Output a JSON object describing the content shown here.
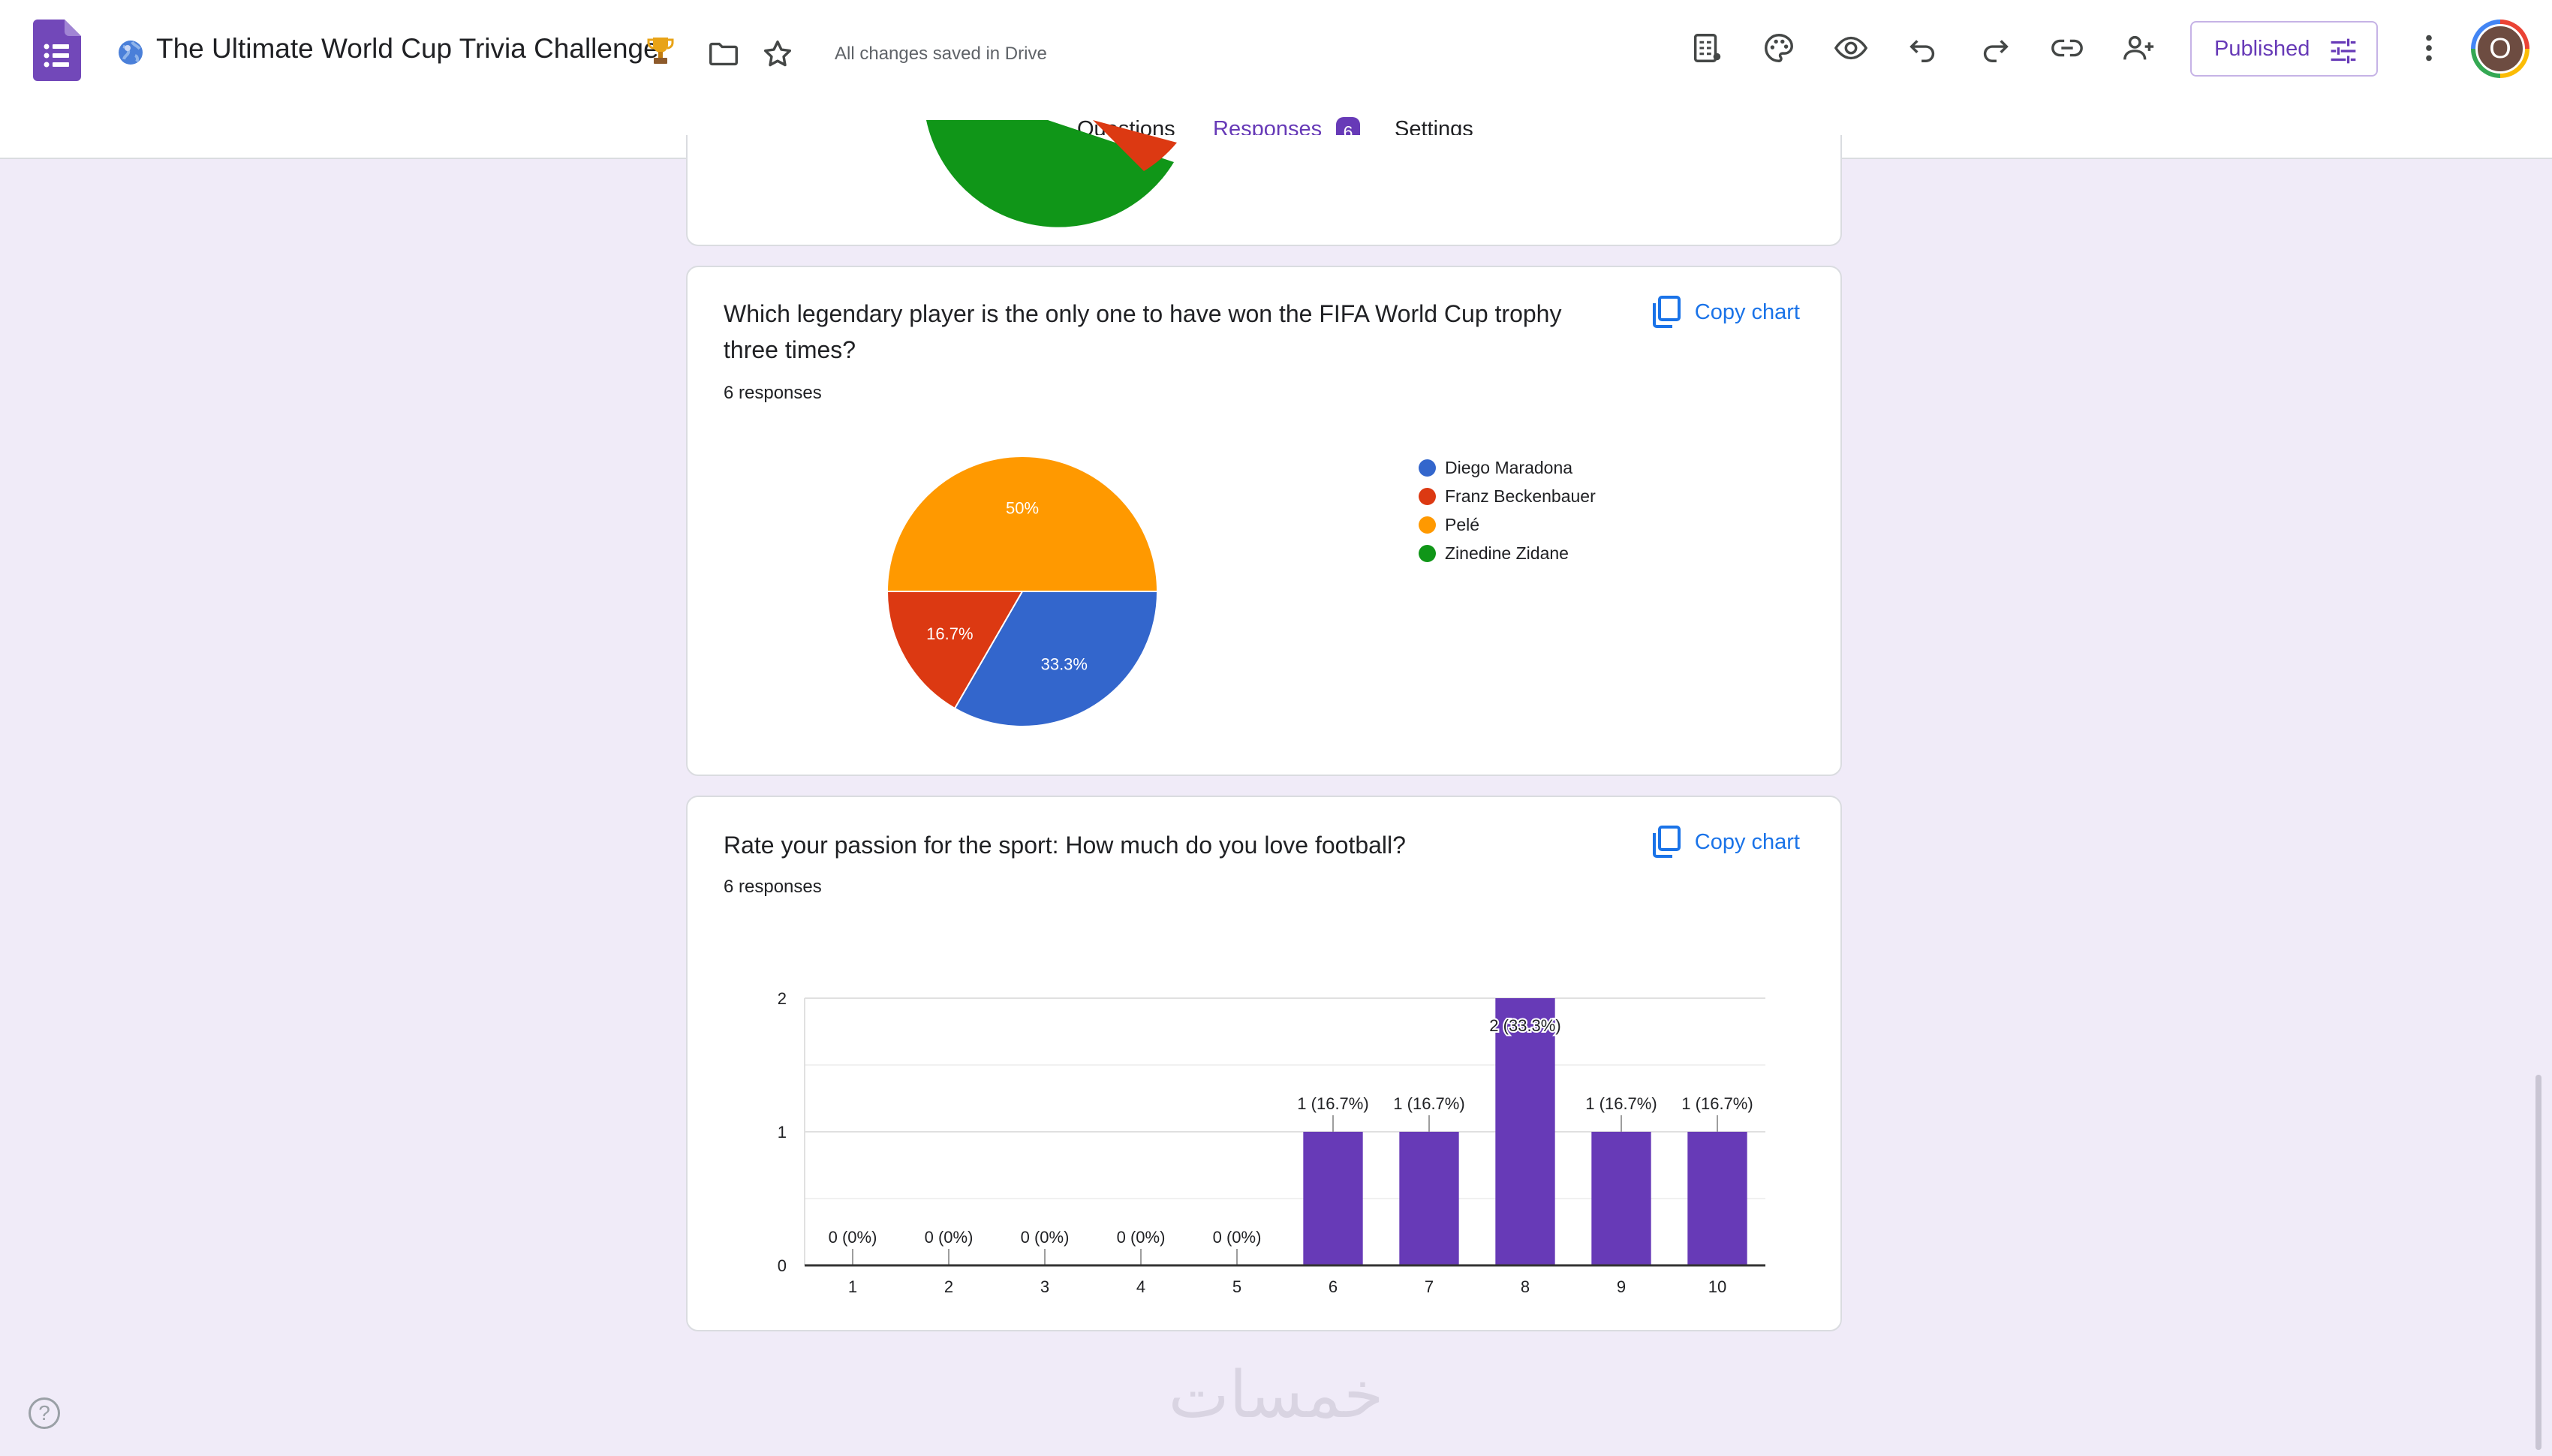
{
  "header": {
    "doc_title": "The Ultimate World Cup Trivia Challenge",
    "saved_status": "All changes saved in Drive",
    "publish_button": "Published",
    "avatar_letter": "O"
  },
  "tabs": [
    {
      "label": "Questions",
      "active": false
    },
    {
      "label": "Responses",
      "active": true,
      "badge": "6"
    },
    {
      "label": "Settings",
      "active": false
    }
  ],
  "colors": {
    "accent": "#673ab7",
    "link": "#1a73e8",
    "background": "#f0ebf8",
    "pie_blue": "#3366cc",
    "pie_red": "#dc3912",
    "pie_orange": "#ff9900",
    "pie_green": "#109618",
    "bar": "#673ab7"
  },
  "icons": [
    "forms-logo-icon",
    "globe-icon",
    "trophy-icon",
    "folder-icon",
    "star-icon",
    "customize-icon",
    "palette-icon",
    "preview-icon",
    "undo-icon",
    "redo-icon",
    "link-icon",
    "add-collaborator-icon",
    "tune-icon",
    "more-vert-icon",
    "copy-icon",
    "help-icon"
  ],
  "questions": [
    {
      "title": " Which legendary player is the only one to have won the FIFA World Cup trophy three times?",
      "responses": "6 responses",
      "copy_label": "Copy chart"
    },
    {
      "title": "Rate your passion for the sport: How much do you love football?",
      "responses": "6 responses",
      "copy_label": "Copy chart"
    }
  ],
  "chart_data": [
    {
      "type": "pie",
      "categories": [
        "Diego Maradona",
        "Franz Beckenbauer",
        "Pelé",
        "Zinedine Zidane"
      ],
      "values": [
        2,
        1,
        3,
        0
      ],
      "labels": [
        "33.3%",
        "16.7%",
        "50%",
        ""
      ],
      "legend": "right"
    },
    {
      "type": "bar",
      "categories": [
        "1",
        "2",
        "3",
        "4",
        "5",
        "6",
        "7",
        "8",
        "9",
        "10"
      ],
      "values": [
        0,
        0,
        0,
        0,
        0,
        1,
        1,
        2,
        1,
        1
      ],
      "data_labels": [
        "0 (0%)",
        "0 (0%)",
        "0 (0%)",
        "0 (0%)",
        "0 (0%)",
        "1 (16.7%)",
        "1 (16.7%)",
        "2 (33.3%)",
        "1 (16.7%)",
        "1 (16.7%)"
      ],
      "yticks": [
        "0",
        "1",
        "2"
      ],
      "ylim": [
        0,
        2
      ],
      "grid": true
    }
  ],
  "watermark": "خمسات"
}
